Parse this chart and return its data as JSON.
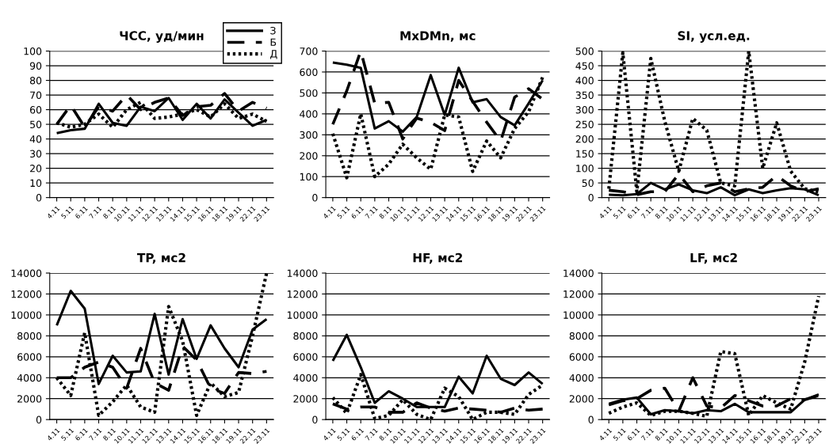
{
  "chart_data": [
    {
      "type": "line",
      "title": "ЧСС, уд/мин",
      "categories": [
        "4.11",
        "5.11",
        "6.11",
        "7.11",
        "8.11",
        "10.11",
        "11.11",
        "12.11",
        "13.11",
        "14.11",
        "15.11",
        "16.11",
        "18.11",
        "19.11",
        "22.11",
        "23.11"
      ],
      "ylim": [
        0,
        100
      ],
      "yticks": [
        0,
        10,
        20,
        30,
        40,
        50,
        60,
        70,
        80,
        90,
        100
      ],
      "grid": "y",
      "legend": "top right",
      "series": [
        {
          "name": "З",
          "color": "#000000",
          "line_style": "solid",
          "values": [
            44,
            46,
            47,
            64,
            51,
            49,
            62,
            59,
            68,
            53,
            64,
            54,
            67,
            58,
            49,
            53
          ]
        },
        {
          "name": "Б",
          "color": "#000000",
          "line_style": "dashed",
          "values": [
            50,
            63,
            48,
            62,
            59,
            70,
            60,
            65,
            68,
            56,
            62,
            63,
            71,
            59,
            65,
            61
          ]
        },
        {
          "name": "Д",
          "color": "#000000",
          "line_style": "dotted",
          "values": [
            51,
            48,
            50,
            57,
            48,
            60,
            65,
            54,
            55,
            57,
            60,
            55,
            64,
            54,
            57,
            52
          ]
        }
      ]
    },
    {
      "type": "line",
      "title": "MxDMn, мс",
      "categories": [
        "4.11",
        "5.11",
        "6.11",
        "7.11",
        "8.11",
        "10.11",
        "11.11",
        "12.11",
        "13.11",
        "14.11",
        "15.11",
        "16.11",
        "18.11",
        "19.11",
        "22.11",
        "23.11"
      ],
      "ylim": [
        0,
        700
      ],
      "yticks": [
        0,
        100,
        200,
        300,
        400,
        500,
        600,
        700
      ],
      "grid": "y",
      "series": [
        {
          "color": "#000000",
          "line_style": "solid",
          "values": [
            645,
            635,
            620,
            330,
            365,
            315,
            385,
            585,
            395,
            620,
            455,
            470,
            385,
            345,
            450,
            560
          ]
        },
        {
          "color": "#000000",
          "line_style": "dashed",
          "values": [
            350,
            510,
            700,
            450,
            455,
            280,
            380,
            360,
            320,
            560,
            460,
            360,
            270,
            480,
            520,
            470
          ]
        },
        {
          "color": "#000000",
          "line_style": "dotted",
          "values": [
            305,
            95,
            400,
            100,
            160,
            255,
            190,
            135,
            395,
            385,
            125,
            270,
            190,
            330,
            410,
            575
          ]
        }
      ]
    },
    {
      "type": "line",
      "title": "SI, усл.ед.",
      "categories": [
        "4.11",
        "5.11",
        "6.11",
        "7.11",
        "8.11",
        "10.11",
        "11.11",
        "12.11",
        "13.11",
        "14.11",
        "15.11",
        "16.11",
        "18.11",
        "19.11",
        "22.11",
        "23.11"
      ],
      "ylim": [
        0,
        500
      ],
      "yticks": [
        0,
        50,
        100,
        150,
        200,
        250,
        300,
        350,
        400,
        450,
        500
      ],
      "grid": "y",
      "series": [
        {
          "color": "#000000",
          "line_style": "solid",
          "values": [
            10,
            8,
            12,
            50,
            28,
            45,
            25,
            15,
            35,
            8,
            28,
            15,
            25,
            32,
            28,
            8
          ]
        },
        {
          "color": "#000000",
          "line_style": "dashed",
          "values": [
            25,
            20,
            10,
            20,
            20,
            80,
            20,
            40,
            50,
            20,
            30,
            35,
            75,
            40,
            20,
            30
          ]
        },
        {
          "color": "#000000",
          "line_style": "dotted",
          "values": [
            30,
            495,
            20,
            475,
            260,
            90,
            270,
            230,
            50,
            40,
            500,
            100,
            255,
            90,
            30,
            20
          ]
        }
      ]
    },
    {
      "type": "line",
      "title": "TP, мс2",
      "categories": [
        "4.11",
        "5.11",
        "6.11",
        "7.11",
        "8.11",
        "10.11",
        "11.11",
        "12.11",
        "13.11",
        "14.11",
        "15.11",
        "16.11",
        "18.11",
        "19.11",
        "22.11",
        "23.11"
      ],
      "ylim": [
        0,
        14000
      ],
      "yticks": [
        0,
        2000,
        4000,
        6000,
        8000,
        10000,
        12000,
        14000
      ],
      "grid": "y",
      "series": [
        {
          "color": "#000000",
          "line_style": "solid",
          "values": [
            9000,
            12300,
            10600,
            3400,
            6100,
            4500,
            4600,
            10100,
            4300,
            9600,
            5800,
            9000,
            6800,
            5000,
            8600,
            9600
          ]
        },
        {
          "color": "#000000",
          "line_style": "dashed",
          "values": [
            4000,
            4000,
            5000,
            5500,
            5000,
            3000,
            6800,
            3500,
            2800,
            7000,
            5700,
            3000,
            2500,
            4500,
            4400,
            4600
          ]
        },
        {
          "color": "#000000",
          "line_style": "dotted",
          "values": [
            4000,
            2300,
            8300,
            400,
            1700,
            3300,
            1200,
            700,
            10800,
            7500,
            400,
            3500,
            2200,
            2600,
            8000,
            14000
          ]
        }
      ]
    },
    {
      "type": "line",
      "title": "HF, мс2",
      "categories": [
        "4.11",
        "5.11",
        "6.11",
        "7.11",
        "8.11",
        "10.11",
        "11.11",
        "12.11",
        "13.11",
        "14.11",
        "15.11",
        "16.11",
        "18.11",
        "19.11",
        "22.11",
        "23.11"
      ],
      "ylim": [
        0,
        14000
      ],
      "yticks": [
        0,
        2000,
        4000,
        6000,
        8000,
        10000,
        12000,
        14000
      ],
      "grid": "y",
      "series": [
        {
          "color": "#000000",
          "line_style": "solid",
          "values": [
            5600,
            8100,
            5000,
            1600,
            2700,
            2000,
            1200,
            1200,
            1200,
            4100,
            2500,
            6100,
            3900,
            3300,
            4500,
            3400
          ]
        },
        {
          "color": "#000000",
          "line_style": "dashed",
          "values": [
            1500,
            1000,
            1200,
            1200,
            700,
            700,
            1600,
            1100,
            800,
            1100,
            1000,
            900,
            700,
            1100,
            900,
            1000
          ]
        },
        {
          "color": "#000000",
          "line_style": "dotted",
          "values": [
            2100,
            600,
            4300,
            100,
            400,
            1900,
            500,
            0,
            3000,
            2200,
            0,
            700,
            700,
            500,
            2400,
            3300
          ]
        }
      ]
    },
    {
      "type": "line",
      "title": "LF, мс2",
      "categories": [
        "4.11",
        "5.11",
        "6.11",
        "7.11",
        "8.11",
        "10.11",
        "11.11",
        "12.11",
        "13.11",
        "14.11",
        "15.11",
        "16.11",
        "18.11",
        "19.11",
        "22.11",
        "23.11"
      ],
      "ylim": [
        0,
        14000
      ],
      "yticks": [
        0,
        2000,
        4000,
        6000,
        8000,
        10000,
        12000,
        14000
      ],
      "grid": "y",
      "series": [
        {
          "color": "#000000",
          "line_style": "solid",
          "values": [
            1500,
            1900,
            2100,
            500,
            900,
            800,
            600,
            900,
            800,
            1500,
            700,
            700,
            700,
            700,
            1900,
            2400
          ]
        },
        {
          "color": "#000000",
          "line_style": "dashed",
          "values": [
            1400,
            1800,
            2000,
            2800,
            3000,
            800,
            4000,
            1300,
            1100,
            2300,
            1800,
            1300,
            1300,
            2000,
            1900,
            2300
          ]
        },
        {
          "color": "#000000",
          "line_style": "dotted",
          "values": [
            600,
            1200,
            1600,
            400,
            800,
            800,
            600,
            300,
            6500,
            6300,
            400,
            2300,
            1600,
            1000,
            5500,
            11800
          ]
        }
      ]
    }
  ]
}
